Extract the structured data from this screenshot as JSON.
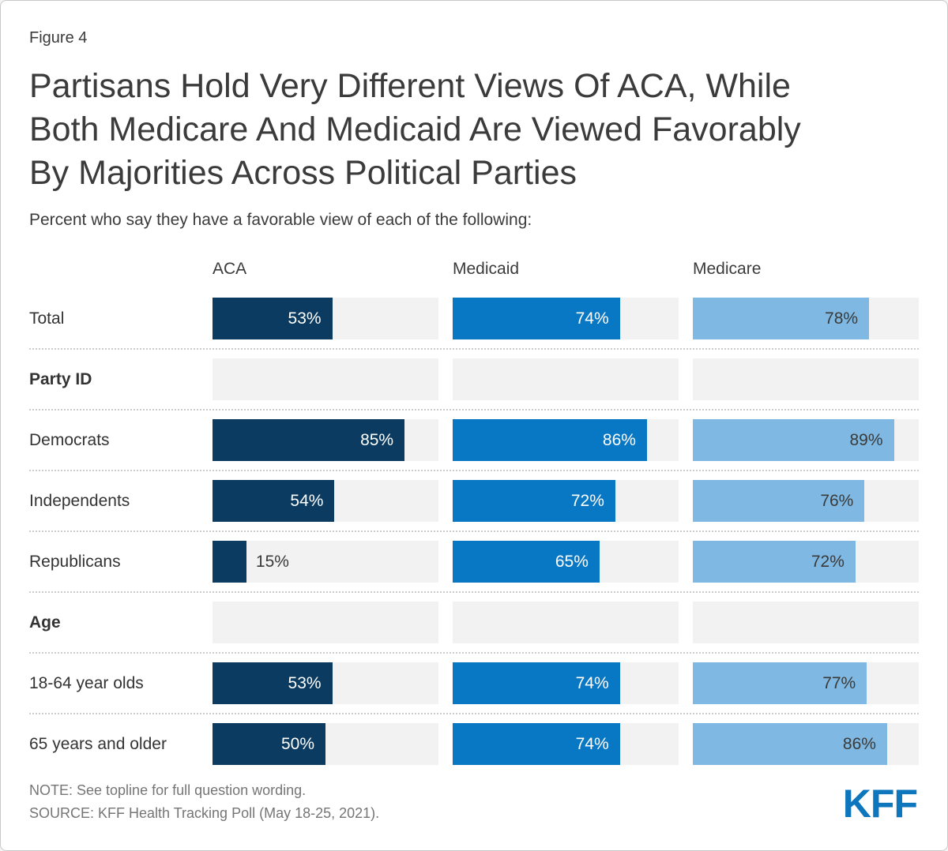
{
  "figure_label": "Figure 4",
  "title": "Partisans Hold Very Different Views Of ACA, While Both Medicare And Medicaid Are Viewed Favorably By Majorities Across Political Parties",
  "title_lines": [
    "Partisans Hold Very Different Views Of ACA, While",
    "Both Medicare And Medicaid Are Viewed Favorably",
    "By Majorities Across Political Parties"
  ],
  "subtitle": "Percent who say they have a favorable view of each of the following:",
  "note": "NOTE: See topline for full question wording.",
  "source": "SOURCE: KFF Health Tracking Poll (May 18-25, 2021).",
  "logo": {
    "text": "KFF",
    "color": "#0e76bc"
  },
  "colors": {
    "aca_bar": "#0b3b60",
    "medicaid_bar": "#0878c4",
    "medicare_bar": "#7fb9e3",
    "track": "#f2f2f2",
    "text_dark": "#3b3b3b",
    "note_gray": "#757575"
  },
  "chart_data": {
    "type": "bar",
    "orientation": "horizontal",
    "unit": "%",
    "xlim": [
      0,
      100
    ],
    "track_color": "#f2f2f2",
    "outside_label_max": 20,
    "outside_label_color": "#3a3a3a",
    "columns": [
      {
        "label": "ACA",
        "color": "#0b3b60",
        "value_color": "#ffffff"
      },
      {
        "label": "Medicaid",
        "color": "#0878c4",
        "value_color": "#ffffff"
      },
      {
        "label": "Medicare",
        "color": "#7fb9e3",
        "value_color": "#3a3a3a"
      }
    ],
    "rows": [
      {
        "label": "Total",
        "type": "data",
        "values": [
          53,
          74,
          78
        ]
      },
      {
        "label": "Party ID",
        "type": "section",
        "values": null
      },
      {
        "label": "Democrats",
        "type": "data",
        "values": [
          85,
          86,
          89
        ]
      },
      {
        "label": "Independents",
        "type": "data",
        "values": [
          54,
          72,
          76
        ]
      },
      {
        "label": "Republicans",
        "type": "data",
        "values": [
          15,
          65,
          72
        ]
      },
      {
        "label": "Age",
        "type": "section",
        "values": null
      },
      {
        "label": "18-64 year olds",
        "type": "data",
        "values": [
          53,
          74,
          77
        ]
      },
      {
        "label": "65 years and older",
        "type": "data",
        "values": [
          50,
          74,
          86
        ]
      }
    ]
  }
}
